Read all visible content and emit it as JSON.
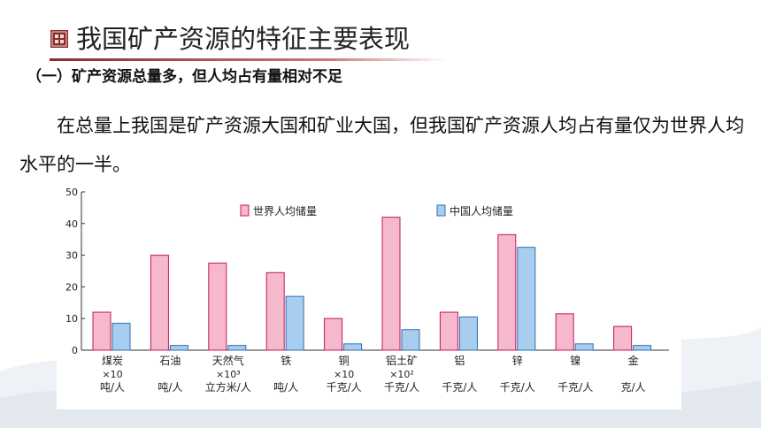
{
  "header": {
    "title": "我国矿产资源的特征主要表现",
    "subheading": "（一）矿产资源总量多，但人均占有量相对不足"
  },
  "body": {
    "paragraph": "在总量上我国是矿产资源大国和矿业大国，但我国矿产资源人均占有量仅为世界人均水平的一半。"
  },
  "colors": {
    "world": "#f5b8cc",
    "china": "#a9cdee",
    "accent": "#8a2c2c"
  },
  "chart_data": {
    "type": "bar",
    "ylim": [
      0,
      50
    ],
    "yticks": [
      0,
      10,
      20,
      30,
      40,
      50
    ],
    "categories": [
      {
        "name": "煤炭",
        "scale": "×10",
        "unit": "吨/人"
      },
      {
        "name": "石油",
        "scale": "",
        "unit": "吨/人"
      },
      {
        "name": "天然气",
        "scale": "×10³",
        "unit": "立方米/人"
      },
      {
        "name": "铁",
        "scale": "",
        "unit": "吨/人"
      },
      {
        "name": "铜",
        "scale": "×10",
        "unit": "千克/人"
      },
      {
        "name": "铝土矿",
        "scale": "×10²",
        "unit": "千克/人"
      },
      {
        "name": "铝",
        "scale": "",
        "unit": "千克/人"
      },
      {
        "name": "锌",
        "scale": "",
        "unit": "千克/人"
      },
      {
        "name": "镍",
        "scale": "",
        "unit": "千克/人"
      },
      {
        "name": "金",
        "scale": "",
        "unit": "克/人"
      }
    ],
    "series": [
      {
        "name": "世界人均储量",
        "values": [
          12,
          30,
          27.5,
          24.5,
          10,
          42,
          12,
          36.5,
          11.5,
          7.5
        ]
      },
      {
        "name": "中国人均储量",
        "values": [
          8.5,
          1.5,
          1.5,
          17,
          2,
          6.5,
          10.5,
          32.5,
          2,
          1.5
        ]
      }
    ],
    "legend": "top",
    "grid": false
  }
}
